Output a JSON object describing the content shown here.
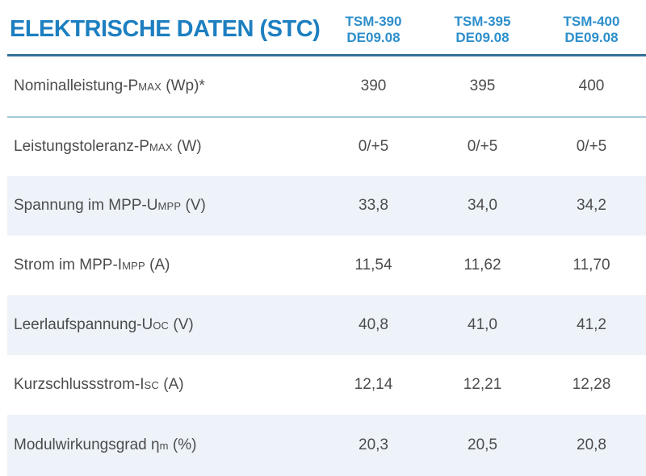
{
  "page": {
    "title": "ELEKTRISCHE DATEN (STC)"
  },
  "columns": [
    {
      "model": "TSM-390",
      "version": "DE09.08"
    },
    {
      "model": "TSM-395",
      "version": "DE09.08"
    },
    {
      "model": "TSM-400",
      "version": "DE09.08"
    }
  ],
  "rows": [
    {
      "label": [
        {
          "t": "Nominalleistung-P"
        },
        {
          "t": "MAX",
          "sub": true
        },
        {
          "t": " (Wp)*"
        }
      ],
      "values": [
        "390",
        "395",
        "400"
      ],
      "shaded": false,
      "separator_above": false
    },
    {
      "label": [
        {
          "t": "Leistungstoleranz-P"
        },
        {
          "t": "MAX",
          "sub": true
        },
        {
          "t": " (W)"
        }
      ],
      "values": [
        "0/+5",
        "0/+5",
        "0/+5"
      ],
      "shaded": false,
      "separator_above": true
    },
    {
      "label": [
        {
          "t": "Spannung im MPP-U"
        },
        {
          "t": "MPP",
          "sub": true
        },
        {
          "t": " (V)"
        }
      ],
      "values": [
        "33,8",
        "34,0",
        "34,2"
      ],
      "shaded": true,
      "separator_above": false
    },
    {
      "label": [
        {
          "t": "Strom im MPP-I"
        },
        {
          "t": "MPP",
          "sub": true
        },
        {
          "t": " (A)"
        }
      ],
      "values": [
        "11,54",
        "11,62",
        "11,70"
      ],
      "shaded": false,
      "separator_above": false
    },
    {
      "label": [
        {
          "t": "Leerlaufspannung-U"
        },
        {
          "t": "OC",
          "sub": true
        },
        {
          "t": " (V)"
        }
      ],
      "values": [
        "40,8",
        "41,0",
        "41,2"
      ],
      "shaded": true,
      "separator_above": false
    },
    {
      "label": [
        {
          "t": "Kurzschlussstrom-I"
        },
        {
          "t": "SC",
          "sub": true
        },
        {
          "t": " (A)"
        }
      ],
      "values": [
        "12,14",
        "12,21",
        "12,28"
      ],
      "shaded": false,
      "separator_above": false
    },
    {
      "label": [
        {
          "t": "Modulwirkungsgrad η"
        },
        {
          "t": "m",
          "sub": true
        },
        {
          "t": " (%)"
        }
      ],
      "values": [
        "20,3",
        "20,5",
        "20,8"
      ],
      "shaded": true,
      "separator_above": false
    }
  ],
  "colors": {
    "title_blue": "#1d7fc0",
    "column_header_blue": "#2e8fcb",
    "header_rule": "#356f9a",
    "row_separator": "#a6cadb",
    "shaded_row_bg": "#edf3f8",
    "body_text": "#4c4c4e"
  }
}
